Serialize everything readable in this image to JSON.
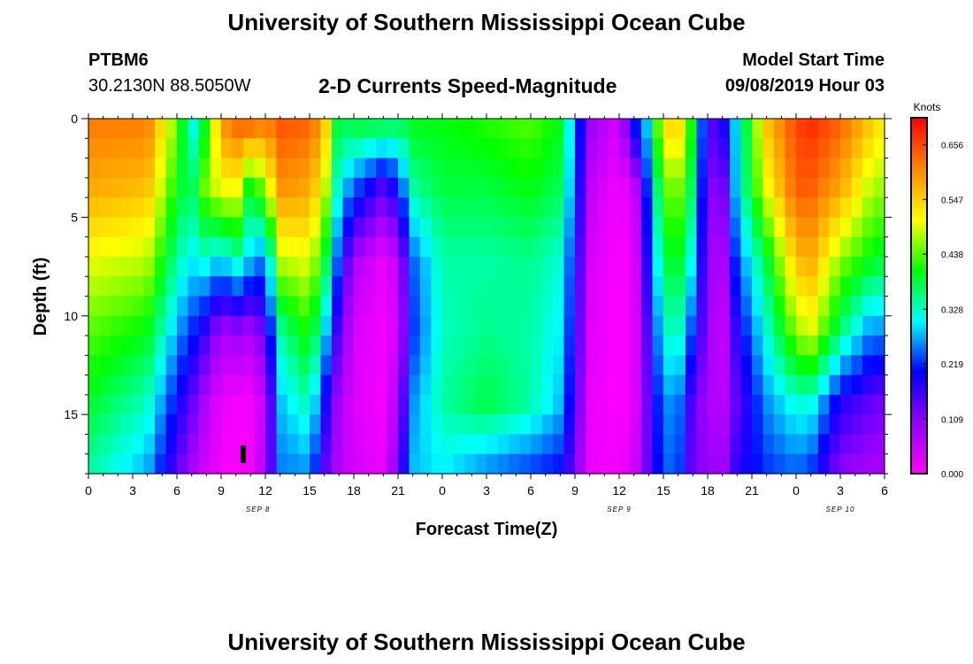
{
  "header": {
    "title": "University of Southern Mississippi Ocean Cube",
    "station_id": "PTBM6",
    "coordinates": "30.2130N 88.5050W",
    "plot_title": "2-D Currents Speed-Magnitude",
    "model_label": "Model Start Time",
    "model_time": "09/08/2019 Hour 03"
  },
  "footer": {
    "title": "University of Southern Mississippi Ocean Cube"
  },
  "chart_data": {
    "type": "heatmap",
    "title": "2-D Currents Speed-Magnitude",
    "xlabel": "Forecast Time(Z)",
    "ylabel": "Depth (ft)",
    "x_range_hours": [
      0,
      54
    ],
    "y_range_ft": [
      0,
      18
    ],
    "y_ticks": [
      "0",
      "5",
      "10",
      "15"
    ],
    "x_ticks": [
      "0",
      "3",
      "6",
      "9",
      "12",
      "15",
      "18",
      "21",
      "0",
      "3",
      "6",
      "9",
      "12",
      "15",
      "18",
      "21",
      "0",
      "3",
      "6"
    ],
    "date_labels": [
      {
        "text": "SEP 8",
        "hour": 11.5
      },
      {
        "text": "SEP 9",
        "hour": 36
      },
      {
        "text": "SEP 10",
        "hour": 51
      }
    ],
    "current_time_marker_hour": 10.5,
    "colorbar": {
      "unit": "Knots",
      "min": 0.0,
      "max": 0.71,
      "tick_labels": [
        "0.656",
        "0.547",
        "0.438",
        "0.328",
        "0.219",
        "0.109",
        "0.000"
      ],
      "tick_values": [
        0.656,
        0.547,
        0.438,
        0.328,
        0.219,
        0.109,
        0.0
      ]
    },
    "speed_keyframes": [
      {
        "hour": 0,
        "profile": [
          0.62,
          0.58,
          0.5,
          0.44,
          0.39,
          0.34
        ]
      },
      {
        "hour": 4,
        "profile": [
          0.62,
          0.56,
          0.48,
          0.4,
          0.33,
          0.27
        ]
      },
      {
        "hour": 6,
        "profile": [
          0.45,
          0.4,
          0.34,
          0.27,
          0.2,
          0.14
        ]
      },
      {
        "hour": 7,
        "profile": [
          0.3,
          0.36,
          0.3,
          0.22,
          0.14,
          0.08
        ]
      },
      {
        "hour": 8,
        "profile": [
          0.4,
          0.46,
          0.32,
          0.16,
          0.07,
          0.04
        ]
      },
      {
        "hour": 9,
        "profile": [
          0.6,
          0.5,
          0.28,
          0.08,
          0.02,
          0.01
        ]
      },
      {
        "hour": 10,
        "profile": [
          0.64,
          0.52,
          0.34,
          0.1,
          0.01,
          0.0
        ]
      },
      {
        "hour": 11,
        "profile": [
          0.66,
          0.38,
          0.28,
          0.08,
          0.01,
          0.01
        ]
      },
      {
        "hour": 12,
        "profile": [
          0.62,
          0.46,
          0.24,
          0.14,
          0.06,
          0.08
        ]
      },
      {
        "hour": 13,
        "profile": [
          0.65,
          0.6,
          0.48,
          0.34,
          0.28,
          0.25
        ]
      },
      {
        "hour": 15,
        "profile": [
          0.64,
          0.58,
          0.5,
          0.42,
          0.34,
          0.26
        ]
      },
      {
        "hour": 16,
        "profile": [
          0.58,
          0.5,
          0.4,
          0.3,
          0.2,
          0.14
        ]
      },
      {
        "hour": 17,
        "profile": [
          0.36,
          0.3,
          0.22,
          0.14,
          0.08,
          0.07
        ]
      },
      {
        "hour": 18,
        "profile": [
          0.4,
          0.24,
          0.08,
          0.04,
          0.03,
          0.04
        ]
      },
      {
        "hour": 20,
        "profile": [
          0.4,
          0.14,
          0.02,
          0.01,
          0.01,
          0.02
        ]
      },
      {
        "hour": 21,
        "profile": [
          0.38,
          0.2,
          0.06,
          0.04,
          0.08,
          0.12
        ]
      },
      {
        "hour": 22,
        "profile": [
          0.4,
          0.34,
          0.24,
          0.22,
          0.26,
          0.28
        ]
      },
      {
        "hour": 24,
        "profile": [
          0.4,
          0.38,
          0.34,
          0.33,
          0.34,
          0.3
        ]
      },
      {
        "hour": 27,
        "profile": [
          0.42,
          0.38,
          0.34,
          0.35,
          0.38,
          0.25
        ]
      },
      {
        "hour": 30,
        "profile": [
          0.44,
          0.4,
          0.35,
          0.34,
          0.34,
          0.22
        ]
      },
      {
        "hour": 32,
        "profile": [
          0.4,
          0.37,
          0.32,
          0.3,
          0.28,
          0.2
        ]
      },
      {
        "hour": 33,
        "profile": [
          0.26,
          0.24,
          0.2,
          0.18,
          0.16,
          0.12
        ]
      },
      {
        "hour": 34,
        "profile": [
          0.1,
          0.06,
          0.04,
          0.03,
          0.02,
          0.02
        ]
      },
      {
        "hour": 36,
        "profile": [
          0.04,
          0.01,
          0.0,
          0.0,
          0.0,
          0.01
        ]
      },
      {
        "hour": 37,
        "profile": [
          0.22,
          0.04,
          0.02,
          0.02,
          0.02,
          0.04
        ]
      },
      {
        "hour": 38,
        "profile": [
          0.3,
          0.24,
          0.2,
          0.16,
          0.14,
          0.14
        ]
      },
      {
        "hour": 39,
        "profile": [
          0.54,
          0.44,
          0.38,
          0.32,
          0.26,
          0.24
        ]
      },
      {
        "hour": 40,
        "profile": [
          0.56,
          0.46,
          0.4,
          0.34,
          0.26,
          0.24
        ]
      },
      {
        "hour": 41,
        "profile": [
          0.4,
          0.36,
          0.3,
          0.22,
          0.14,
          0.12
        ]
      },
      {
        "hour": 42,
        "profile": [
          0.14,
          0.12,
          0.1,
          0.1,
          0.08,
          0.1
        ]
      },
      {
        "hour": 43,
        "profile": [
          0.18,
          0.1,
          0.06,
          0.04,
          0.06,
          0.08
        ]
      },
      {
        "hour": 44,
        "profile": [
          0.3,
          0.3,
          0.24,
          0.18,
          0.14,
          0.18
        ]
      },
      {
        "hour": 46,
        "profile": [
          0.56,
          0.5,
          0.38,
          0.32,
          0.26,
          0.22
        ]
      },
      {
        "hour": 48,
        "profile": [
          0.66,
          0.64,
          0.56,
          0.46,
          0.32,
          0.24
        ]
      },
      {
        "hour": 49,
        "profile": [
          0.68,
          0.64,
          0.58,
          0.5,
          0.32,
          0.22
        ]
      },
      {
        "hour": 51,
        "profile": [
          0.64,
          0.58,
          0.46,
          0.36,
          0.18,
          0.1
        ]
      },
      {
        "hour": 53,
        "profile": [
          0.56,
          0.48,
          0.4,
          0.26,
          0.14,
          0.08
        ]
      },
      {
        "hour": 54,
        "profile": [
          0.52,
          0.46,
          0.38,
          0.26,
          0.12,
          0.08
        ]
      }
    ]
  }
}
